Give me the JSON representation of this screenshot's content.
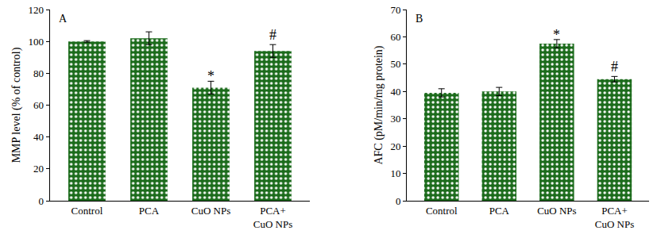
{
  "chart_data": [
    {
      "type": "bar",
      "panel": "A",
      "y_label": "MMP level (% of control)",
      "categories": [
        "Control",
        "PCA",
        "CuO NPs",
        "PCA+\nCuO NPs"
      ],
      "values": [
        100,
        102,
        71,
        94
      ],
      "errors": [
        0.5,
        4,
        4,
        4
      ],
      "color": "#1b6b1b",
      "ylim": [
        0,
        120
      ],
      "yticks": [
        0,
        20,
        40,
        60,
        80,
        100,
        120
      ],
      "grid": false,
      "annotations": [
        {
          "category": "CuO NPs",
          "text": "*"
        },
        {
          "category": "PCA+\nCuO NPs",
          "text": "#"
        }
      ]
    },
    {
      "type": "bar",
      "panel": "B",
      "y_label": "AFC (pM/min/mg protein)",
      "categories": [
        "Control",
        "PCA",
        "CuO NPs",
        "PCA+\nCuO NPs"
      ],
      "values": [
        39.5,
        40,
        57.5,
        44.5
      ],
      "errors": [
        1.5,
        1.5,
        1.5,
        1
      ],
      "color": "#1b6b1b",
      "ylim": [
        0,
        70
      ],
      "yticks": [
        0,
        10,
        20,
        30,
        40,
        50,
        60,
        70
      ],
      "grid": false,
      "annotations": [
        {
          "category": "CuO NPs",
          "text": "*"
        },
        {
          "category": "PCA+\nCuO NPs",
          "text": "#"
        }
      ]
    }
  ]
}
